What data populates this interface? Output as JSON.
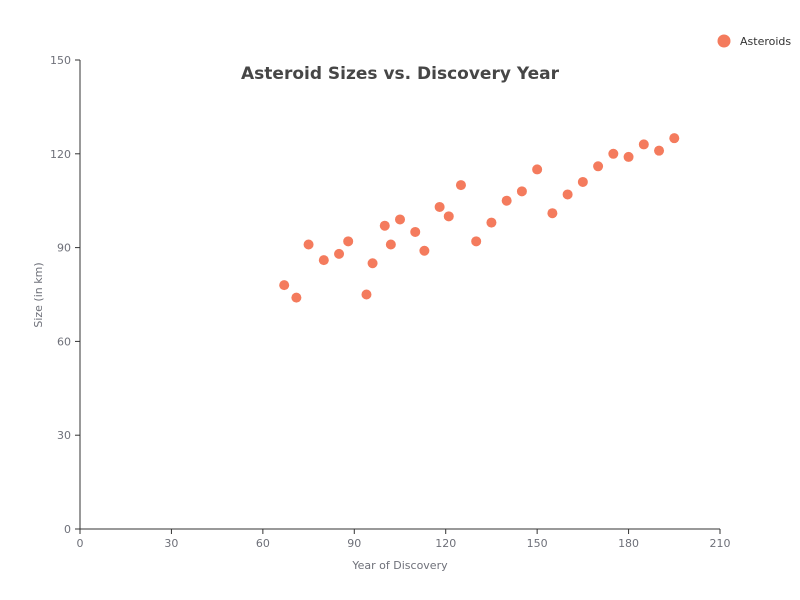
{
  "chart_data": {
    "type": "scatter",
    "title": "Asteroid Sizes vs. Discovery Year",
    "xlabel": "Year of Discovery",
    "ylabel": "Size (in km)",
    "xlim": [
      0,
      210
    ],
    "ylim": [
      0,
      150
    ],
    "xticks": [
      0,
      30,
      60,
      90,
      120,
      150,
      180,
      210
    ],
    "yticks": [
      0,
      30,
      60,
      90,
      120,
      150
    ],
    "grid": false,
    "legend_position": "top-right",
    "series": [
      {
        "name": "Asteroids",
        "color": "#f47b5d",
        "points": [
          [
            67,
            78
          ],
          [
            71,
            74
          ],
          [
            75,
            91
          ],
          [
            80,
            86
          ],
          [
            85,
            88
          ],
          [
            88,
            92
          ],
          [
            94,
            75
          ],
          [
            96,
            85
          ],
          [
            100,
            97
          ],
          [
            102,
            91
          ],
          [
            105,
            99
          ],
          [
            110,
            95
          ],
          [
            113,
            89
          ],
          [
            118,
            103
          ],
          [
            121,
            100
          ],
          [
            125,
            110
          ],
          [
            130,
            92
          ],
          [
            135,
            98
          ],
          [
            140,
            105
          ],
          [
            145,
            108
          ],
          [
            150,
            115
          ],
          [
            155,
            101
          ],
          [
            160,
            107
          ],
          [
            165,
            111
          ],
          [
            170,
            116
          ],
          [
            175,
            120
          ],
          [
            180,
            119
          ],
          [
            185,
            123
          ],
          [
            190,
            121
          ],
          [
            195,
            125
          ]
        ]
      }
    ]
  }
}
